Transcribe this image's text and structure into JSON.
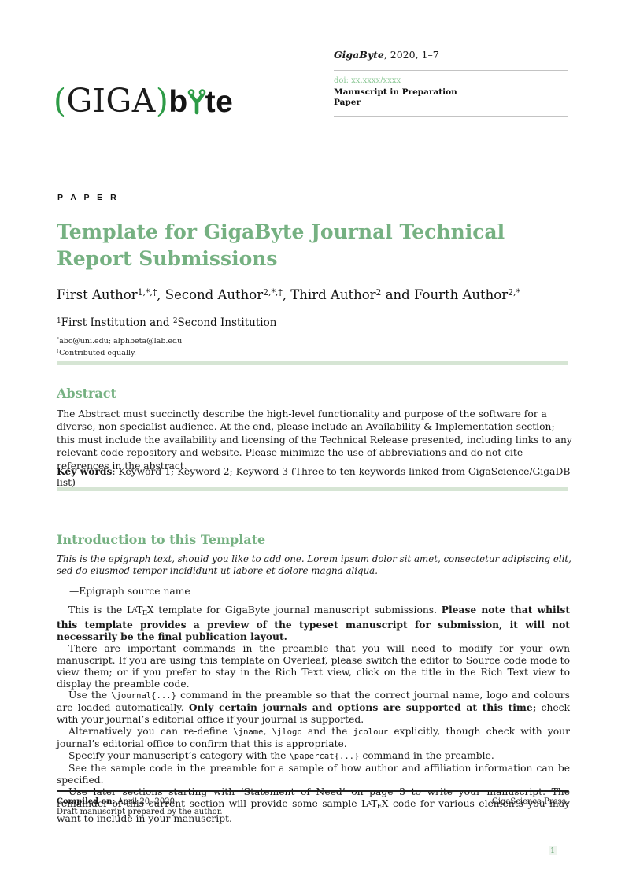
{
  "header": {
    "journal_line": [
      {
        "t": "GigaByte",
        "b": 1,
        "i": 1
      },
      {
        "t": ", 2020, 1–7"
      }
    ],
    "doi": "doi: xx.xxxx/xxxx",
    "status": "Manuscript in Preparation",
    "category": "Paper"
  },
  "logo": {
    "paren_open": "(",
    "giga": "GIGA",
    "paren_close": ")",
    "b": "b",
    "te": "te",
    "green": "#2d9b46"
  },
  "masthead": {
    "kicker": "P A P E R",
    "title": "Template for GigaByte Journal Technical Report Submissions"
  },
  "authors": {
    "line": [
      {
        "t": "First Author"
      },
      {
        "t": "1,*,†",
        "s": 1
      },
      {
        "t": ", Second Author"
      },
      {
        "t": "2,*,†",
        "s": 1
      },
      {
        "t": ", Third Author"
      },
      {
        "t": "2",
        "s": 1
      },
      {
        "t": " and Fourth Author"
      },
      {
        "t": "2,*",
        "s": 1
      }
    ],
    "affiliations": [
      {
        "t": "1",
        "s": 1
      },
      {
        "t": "First Institution and "
      },
      {
        "t": "2",
        "s": 1
      },
      {
        "t": "Second Institution"
      }
    ],
    "footnote_email": [
      {
        "t": "*",
        "s": 1
      },
      {
        "t": "abc@uni.edu; alphbeta@lab.edu"
      }
    ],
    "footnote_equal": [
      {
        "t": "†",
        "s": 1
      },
      {
        "t": "Contributed equally."
      }
    ]
  },
  "abstract": {
    "heading": "Abstract",
    "body": "The Abstract must succinctly describe the high-level functionality and purpose of the software for a diverse, non-specialist audience. At the end, please include an Availability & Implementation section; this must include the availability and licensing of the Technical Release presented, including links to any relevant code repository and website. Please minimize the use of abbreviations and do not cite references in the abstract.",
    "keywords": [
      {
        "t": "Key words",
        "b": 1
      },
      {
        "t": ": Keyword 1; Keyword 2; Keyword 3 (Three to ten keywords linked from GigaScience/GigaDB list)"
      }
    ]
  },
  "introduction": {
    "heading": "Introduction to this Template",
    "epigraph": "This is the epigraph text, should you like to add one. Lorem ipsum dolor sit amet, consectetur adipiscing elit, sed do eiusmod tempor incididunt ut labore et dolore magna aliqua.",
    "epigraph_source": "—Epigraph source name",
    "paragraphs": [
      [
        {
          "t": "This is the "
        },
        {
          "t": "LaTeX",
          "latex": 1
        },
        {
          "t": " template for GigaByte journal manuscript submissions. "
        },
        {
          "t": "Please note that whilst this template provides a preview of the typeset manuscript for submission, it will not necessarily be the final publication layout.",
          "b": 1
        }
      ],
      [
        {
          "t": "There are important commands in the preamble that you will need to modify for your own manuscript. If you are using this template on Overleaf, please switch the editor to Source code mode to view them; or if you prefer to stay in the Rich Text view, click on the title in the Rich Text view to display the preamble code."
        }
      ],
      [
        {
          "t": "Use the "
        },
        {
          "t": "\\journal{...}",
          "c": 1
        },
        {
          "t": " command in the preamble so that the correct journal name, logo and colours are loaded automatically. "
        },
        {
          "t": "Only certain journals and options are supported at this time;",
          "b": 1
        },
        {
          "t": " check with your journal’s editorial office if your journal is supported."
        }
      ],
      [
        {
          "t": "Alternatively you can re-define "
        },
        {
          "t": "\\jname",
          "c": 1
        },
        {
          "t": ", "
        },
        {
          "t": "\\jlogo",
          "c": 1
        },
        {
          "t": " and the "
        },
        {
          "t": "jcolour",
          "c": 1
        },
        {
          "t": " explicitly, though check with your journal’s editorial office to confirm that this is appropriate."
        }
      ],
      [
        {
          "t": "Specify your manuscript’s category with the "
        },
        {
          "t": "\\papercat{...}",
          "c": 1
        },
        {
          "t": " command in the preamble."
        }
      ],
      [
        {
          "t": "See the sample code in the preamble for a sample of how author and affiliation information can be specified."
        }
      ],
      [
        {
          "t": "Use later sections starting with ‘Statement of Need’ on page 3 to write your manuscript. The remainder of this current section will provide some sample "
        },
        {
          "t": "LaTeX",
          "latex": 1
        },
        {
          "t": " code for various elements you may want to include in your manuscript."
        }
      ]
    ]
  },
  "footer": {
    "compiled_label": "Compiled on:",
    "compiled_date": " April 20, 2020.",
    "draft_note": "Draft manuscript prepared by the author.",
    "publisher": "GigaScience Press.",
    "page_number": "1"
  },
  "colors": {
    "accent_green": "#76b182",
    "doi_green": "#8cc896",
    "bar_green": "#d6e5d4",
    "logo_green": "#2d9b46"
  }
}
